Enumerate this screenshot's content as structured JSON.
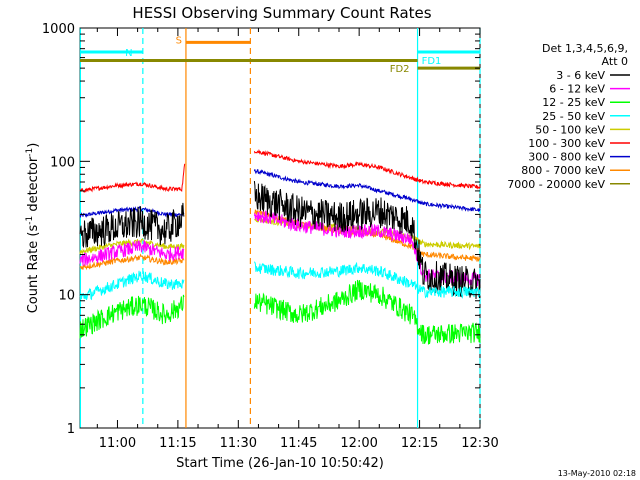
{
  "chart_data": {
    "type": "line",
    "title": "HESSI Observing Summary Count Rates",
    "xlabel": "Start Time (26-Jan-10 10:50:42)",
    "ylabel_main": "Count Rate (s",
    "ylabel_sup1": "-1",
    "ylabel_mid": " detector",
    "ylabel_sup2": "-1",
    "ylabel_end": ")",
    "footer": "13-May-2010 02:18",
    "x_range_min": [
      650.7,
      750.0
    ],
    "y_range": [
      1,
      1000
    ],
    "y_scale": "log",
    "x_ticks": [
      {
        "m": 660,
        "label": "11:00"
      },
      {
        "m": 675,
        "label": "11:15"
      },
      {
        "m": 690,
        "label": "11:30"
      },
      {
        "m": 705,
        "label": "11:45"
      },
      {
        "m": 720,
        "label": "12:00"
      },
      {
        "m": 735,
        "label": "12:15"
      },
      {
        "m": 750,
        "label": "12:30"
      }
    ],
    "y_ticks": [
      {
        "v": 1,
        "label": "1"
      },
      {
        "v": 10,
        "label": "10"
      },
      {
        "v": 100,
        "label": "100"
      },
      {
        "v": 1000,
        "label": "1000"
      }
    ],
    "legend": {
      "header": [
        "Det 1,3,4,5,6,9,",
        "Att 0"
      ],
      "entries": [
        {
          "label": "3 - 6 keV",
          "color": "#000000"
        },
        {
          "label": "6 - 12 keV",
          "color": "#ff00ff"
        },
        {
          "label": "12 - 25 keV",
          "color": "#00ff00"
        },
        {
          "label": "25 - 50 keV",
          "color": "#00ffff"
        },
        {
          "label": "50 - 100 keV",
          "color": "#cccc00"
        },
        {
          "label": "100 - 300 keV",
          "color": "#ff0000"
        },
        {
          "label": "300 - 800 keV",
          "color": "#0000cc"
        },
        {
          "label": "800 - 7000 keV",
          "color": "#ff8800"
        },
        {
          "label": "7000 - 20000 keV",
          "color": "#888800"
        }
      ]
    },
    "flags": [
      {
        "label": "N",
        "color": "#00ffff",
        "start": 650.7,
        "end": 666.3,
        "level": 660
      },
      {
        "label": "S",
        "color": "#ff8800",
        "start": 677.0,
        "end": 693.0,
        "level": 780
      },
      {
        "label": "FD1",
        "color": "#00ffff",
        "start": 734.5,
        "end": 750.0,
        "level": 660
      },
      {
        "label": "FD2",
        "color": "#888800",
        "start": 650.7,
        "end": 750.0,
        "level_left": 570,
        "level_right": 500,
        "step_at": 734.5
      }
    ],
    "vertical_lines": [
      {
        "m": 650.8,
        "color": "#00ffff",
        "style": "solid"
      },
      {
        "m": 666.3,
        "color": "#00ffff",
        "style": "dashed"
      },
      {
        "m": 677.0,
        "color": "#ff8800",
        "style": "solid"
      },
      {
        "m": 693.0,
        "color": "#ff8800",
        "style": "dashed"
      },
      {
        "m": 734.5,
        "color": "#00ffff",
        "style": "solid"
      },
      {
        "m": 750.0,
        "color": "#00ffff",
        "style": "dashed"
      }
    ],
    "data_segments": [
      [
        650.7,
        677.0
      ],
      [
        694.0,
        750.0
      ]
    ],
    "series": [
      {
        "name": "3 - 6 keV",
        "color": "#000000",
        "noise": 0.28,
        "seg1": [
          [
            650.7,
            28
          ],
          [
            660,
            32
          ],
          [
            666,
            35
          ],
          [
            672,
            30
          ],
          [
            676.5,
            38
          ]
        ],
        "seg2": [
          [
            694,
            55
          ],
          [
            705,
            42
          ],
          [
            715,
            38
          ],
          [
            725,
            42
          ],
          [
            733,
            35
          ],
          [
            736,
            14
          ],
          [
            750,
            12
          ]
        ]
      },
      {
        "name": "6 - 12 keV",
        "color": "#ff00ff",
        "noise": 0.12,
        "seg1": [
          [
            650.7,
            18
          ],
          [
            660,
            21
          ],
          [
            666,
            23
          ],
          [
            672,
            20
          ],
          [
            676.5,
            21
          ]
        ],
        "seg2": [
          [
            694,
            40
          ],
          [
            705,
            33
          ],
          [
            715,
            30
          ],
          [
            725,
            30
          ],
          [
            733,
            26
          ],
          [
            736,
            14
          ],
          [
            750,
            13
          ]
        ]
      },
      {
        "name": "12 - 25 keV",
        "color": "#00ff00",
        "noise": 0.18,
        "seg1": [
          [
            650.7,
            5.5
          ],
          [
            660,
            7.5
          ],
          [
            666,
            8.5
          ],
          [
            672,
            7
          ],
          [
            676.5,
            8.5
          ]
        ],
        "seg2": [
          [
            694,
            9
          ],
          [
            705,
            7
          ],
          [
            715,
            9
          ],
          [
            720,
            11
          ],
          [
            725,
            10
          ],
          [
            733,
            7
          ],
          [
            736,
            5
          ],
          [
            750,
            5.2
          ]
        ]
      },
      {
        "name": "25 - 50 keV",
        "color": "#00ffff",
        "noise": 0.1,
        "seg1": [
          [
            650.7,
            9.5
          ],
          [
            660,
            12
          ],
          [
            666,
            14
          ],
          [
            672,
            12
          ],
          [
            676.5,
            12
          ]
        ],
        "seg2": [
          [
            694,
            16
          ],
          [
            705,
            14.5
          ],
          [
            715,
            15
          ],
          [
            720,
            16
          ],
          [
            725,
            15
          ],
          [
            733,
            12
          ],
          [
            736,
            10.5
          ],
          [
            750,
            10.5
          ]
        ]
      },
      {
        "name": "50 - 100 keV",
        "color": "#cccc00",
        "noise": 0.05,
        "seg1": [
          [
            650.7,
            21
          ],
          [
            660,
            24
          ],
          [
            666,
            25
          ],
          [
            672,
            23
          ],
          [
            676.5,
            23
          ]
        ],
        "seg2": [
          [
            694,
            37
          ],
          [
            705,
            33
          ],
          [
            715,
            32
          ],
          [
            725,
            30
          ],
          [
            733,
            27
          ],
          [
            736,
            24
          ],
          [
            750,
            23
          ]
        ]
      },
      {
        "name": "100 - 300 keV",
        "color": "#ff0000",
        "noise": 0.035,
        "seg1": [
          [
            650.7,
            60
          ],
          [
            660,
            66
          ],
          [
            666,
            68
          ],
          [
            672,
            62
          ],
          [
            676,
            62
          ],
          [
            676.7,
            95
          ]
        ],
        "seg2": [
          [
            694,
            120
          ],
          [
            705,
            100
          ],
          [
            715,
            92
          ],
          [
            720,
            95
          ],
          [
            725,
            90
          ],
          [
            733,
            75
          ],
          [
            736,
            70
          ],
          [
            750,
            64
          ]
        ]
      },
      {
        "name": "300 - 800 keV",
        "color": "#0000cc",
        "noise": 0.035,
        "seg1": [
          [
            650.7,
            39
          ],
          [
            660,
            43
          ],
          [
            666,
            44
          ],
          [
            672,
            40
          ],
          [
            676.5,
            40
          ]
        ],
        "seg2": [
          [
            694,
            85
          ],
          [
            705,
            70
          ],
          [
            715,
            65
          ],
          [
            720,
            66
          ],
          [
            725,
            60
          ],
          [
            733,
            52
          ],
          [
            736,
            48
          ],
          [
            750,
            43
          ]
        ]
      },
      {
        "name": "800 - 7000 keV",
        "color": "#ff8800",
        "noise": 0.05,
        "seg1": [
          [
            650.7,
            16
          ],
          [
            660,
            18
          ],
          [
            666,
            19
          ],
          [
            672,
            17.5
          ],
          [
            676.5,
            18
          ]
        ],
        "seg2": [
          [
            694,
            42
          ],
          [
            705,
            34
          ],
          [
            715,
            30
          ],
          [
            725,
            28
          ],
          [
            733,
            23
          ],
          [
            736,
            20
          ],
          [
            750,
            18.5
          ]
        ]
      }
    ]
  }
}
